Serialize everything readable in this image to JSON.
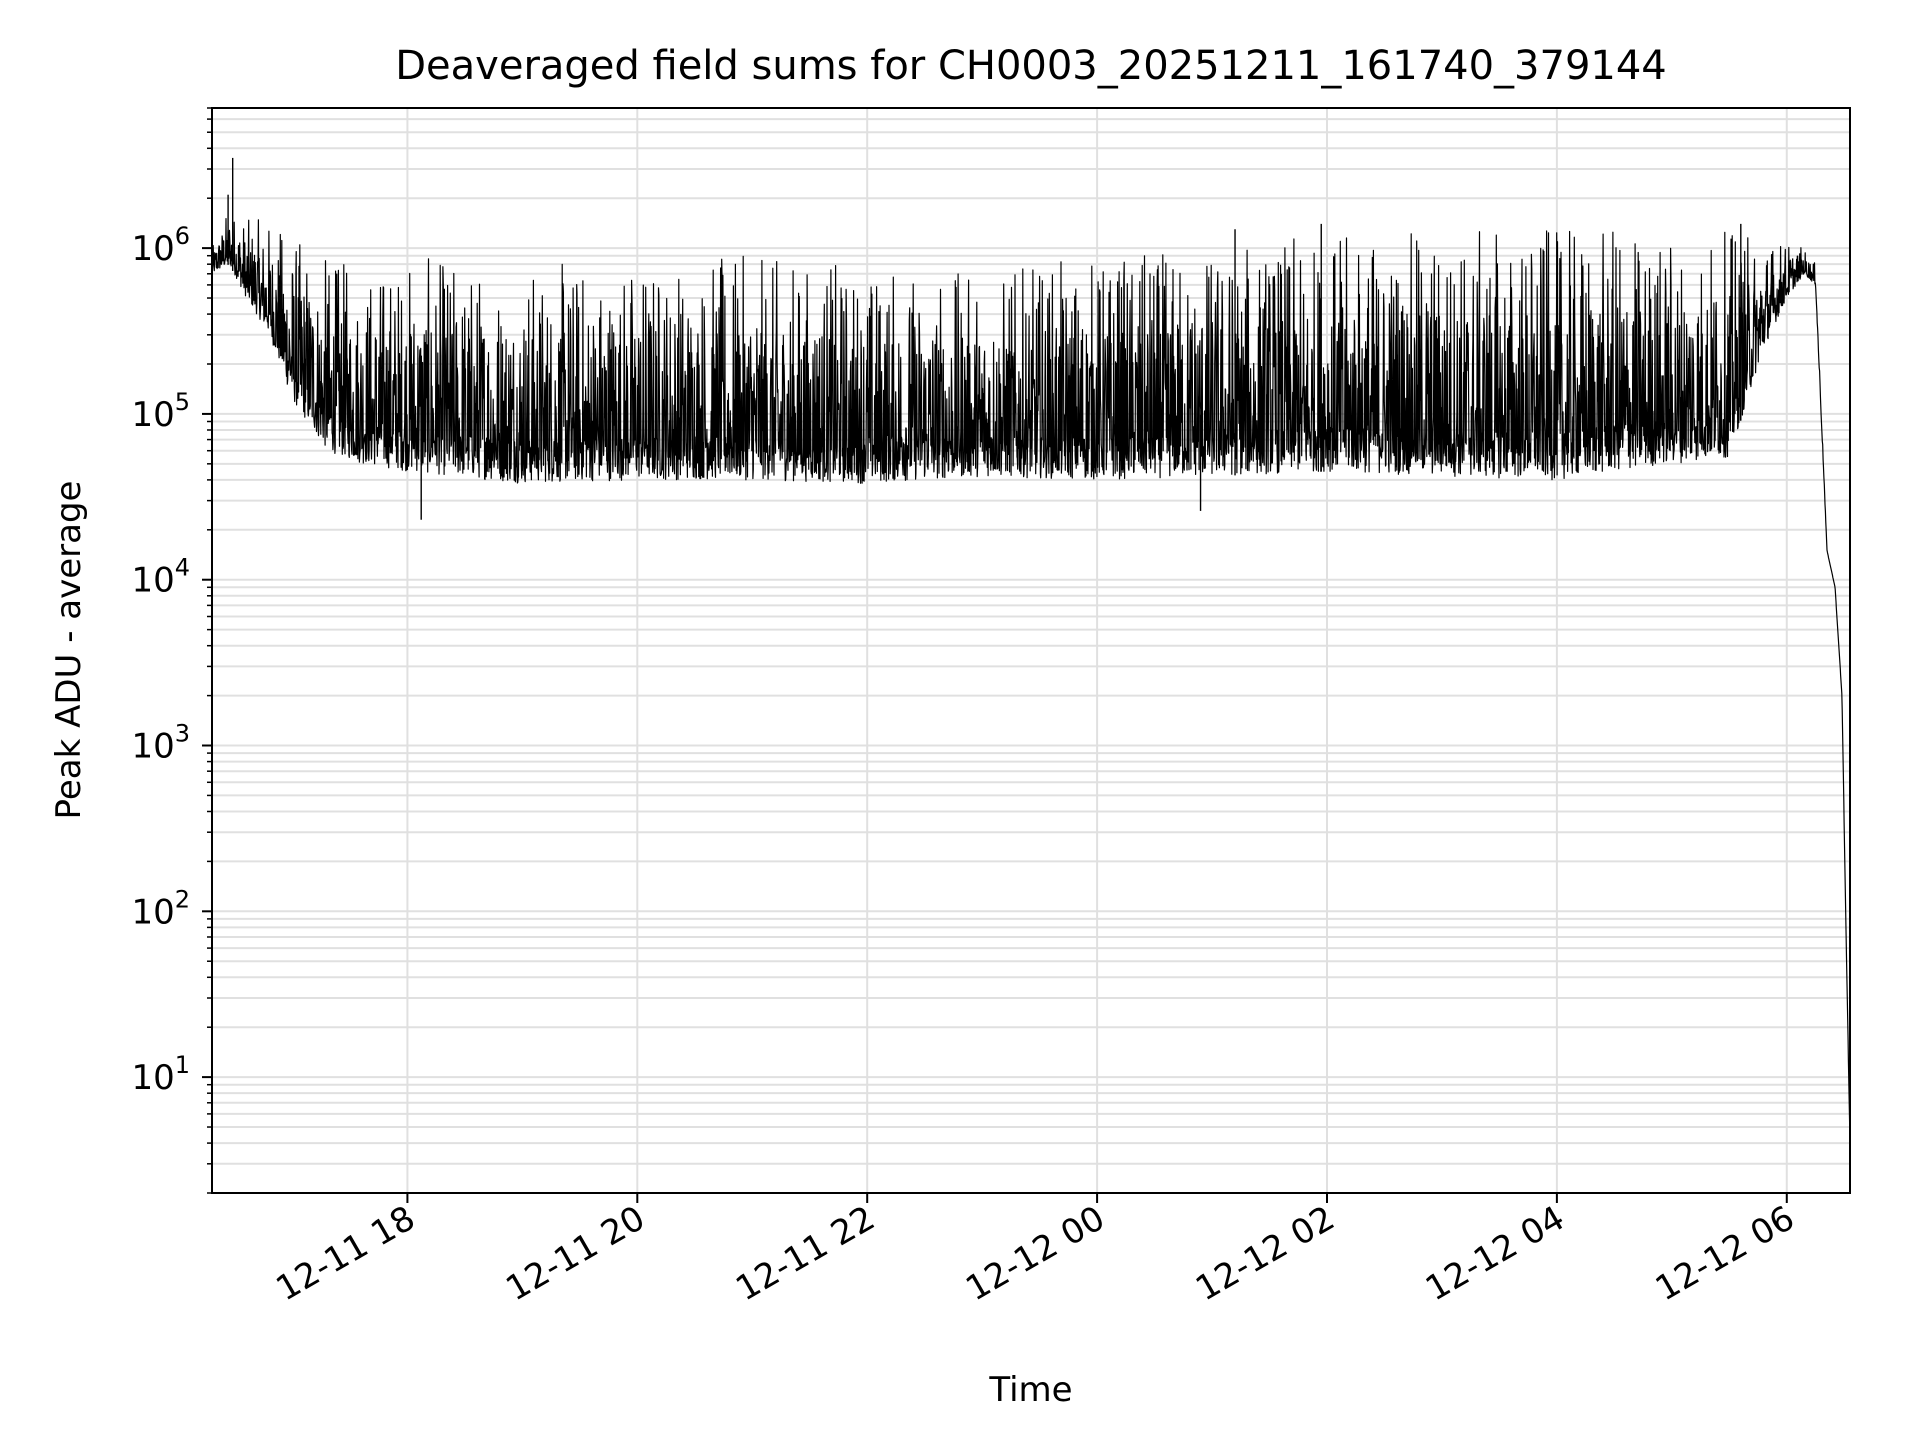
{
  "chart_data": {
    "type": "line",
    "title": "Deaveraged field sums for CH0003_20251211_161740_379144",
    "xlabel": "Time",
    "ylabel": "Peak ADU - average",
    "yscale": "log",
    "ylim": [
      2,
      7000000
    ],
    "xlim_hours": [
      16.3,
      30.55
    ],
    "grid": true,
    "line_color": "#000000",
    "grid_color": "#e0e0e0",
    "x_ticks": [
      {
        "label": "12-11 18",
        "hours": 18
      },
      {
        "label": "12-11 20",
        "hours": 20
      },
      {
        "label": "12-11 22",
        "hours": 22
      },
      {
        "label": "12-12 00",
        "hours": 24
      },
      {
        "label": "12-12 02",
        "hours": 26
      },
      {
        "label": "12-12 04",
        "hours": 28
      },
      {
        "label": "12-12 06",
        "hours": 30
      }
    ],
    "y_ticks": [
      {
        "base": "10",
        "exp": "1",
        "value": 10
      },
      {
        "base": "10",
        "exp": "2",
        "value": 100
      },
      {
        "base": "10",
        "exp": "3",
        "value": 1000
      },
      {
        "base": "10",
        "exp": "4",
        "value": 10000
      },
      {
        "base": "10",
        "exp": "5",
        "value": 100000
      },
      {
        "base": "10",
        "exp": "6",
        "value": 1000000
      }
    ],
    "series": [
      {
        "name": "deaveraged field sum",
        "envelope_hours": [
          16.3,
          16.45,
          16.6,
          16.8,
          17.0,
          17.3,
          17.6,
          18.0,
          19.0,
          20.0,
          21.0,
          22.0,
          23.0,
          24.0,
          25.0,
          26.0,
          27.0,
          28.0,
          29.0,
          29.5,
          29.8,
          30.0,
          30.15,
          30.25,
          30.35,
          30.42,
          30.48,
          30.52,
          30.55
        ],
        "envelope_low": [
          700000,
          800000,
          500000,
          300000,
          120000,
          60000,
          50000,
          45000,
          38000,
          40000,
          40000,
          38000,
          42000,
          40000,
          42000,
          45000,
          42000,
          40000,
          50000,
          55000,
          250000,
          500000,
          700000,
          600000,
          15000,
          9000,
          2000,
          50,
          4
        ],
        "envelope_high": [
          1000000,
          1800000,
          1500000,
          1500000,
          1200000,
          900000,
          800000,
          900000,
          800000,
          900000,
          900000,
          800000,
          700000,
          900000,
          1000000,
          1200000,
          1300000,
          1300000,
          1300000,
          1300000,
          1200000,
          1100000,
          1000000,
          800000,
          15000,
          9000,
          2000,
          50,
          4
        ],
        "spikes": [
          {
            "hours": 16.48,
            "value": 3500000
          },
          {
            "hours": 16.44,
            "value": 2100000
          },
          {
            "hours": 18.12,
            "value": 23000
          },
          {
            "hours": 24.9,
            "value": 26000
          },
          {
            "hours": 25.2,
            "value": 1300000
          },
          {
            "hours": 25.95,
            "value": 1400000
          },
          {
            "hours": 29.6,
            "value": 1400000
          }
        ]
      }
    ]
  }
}
